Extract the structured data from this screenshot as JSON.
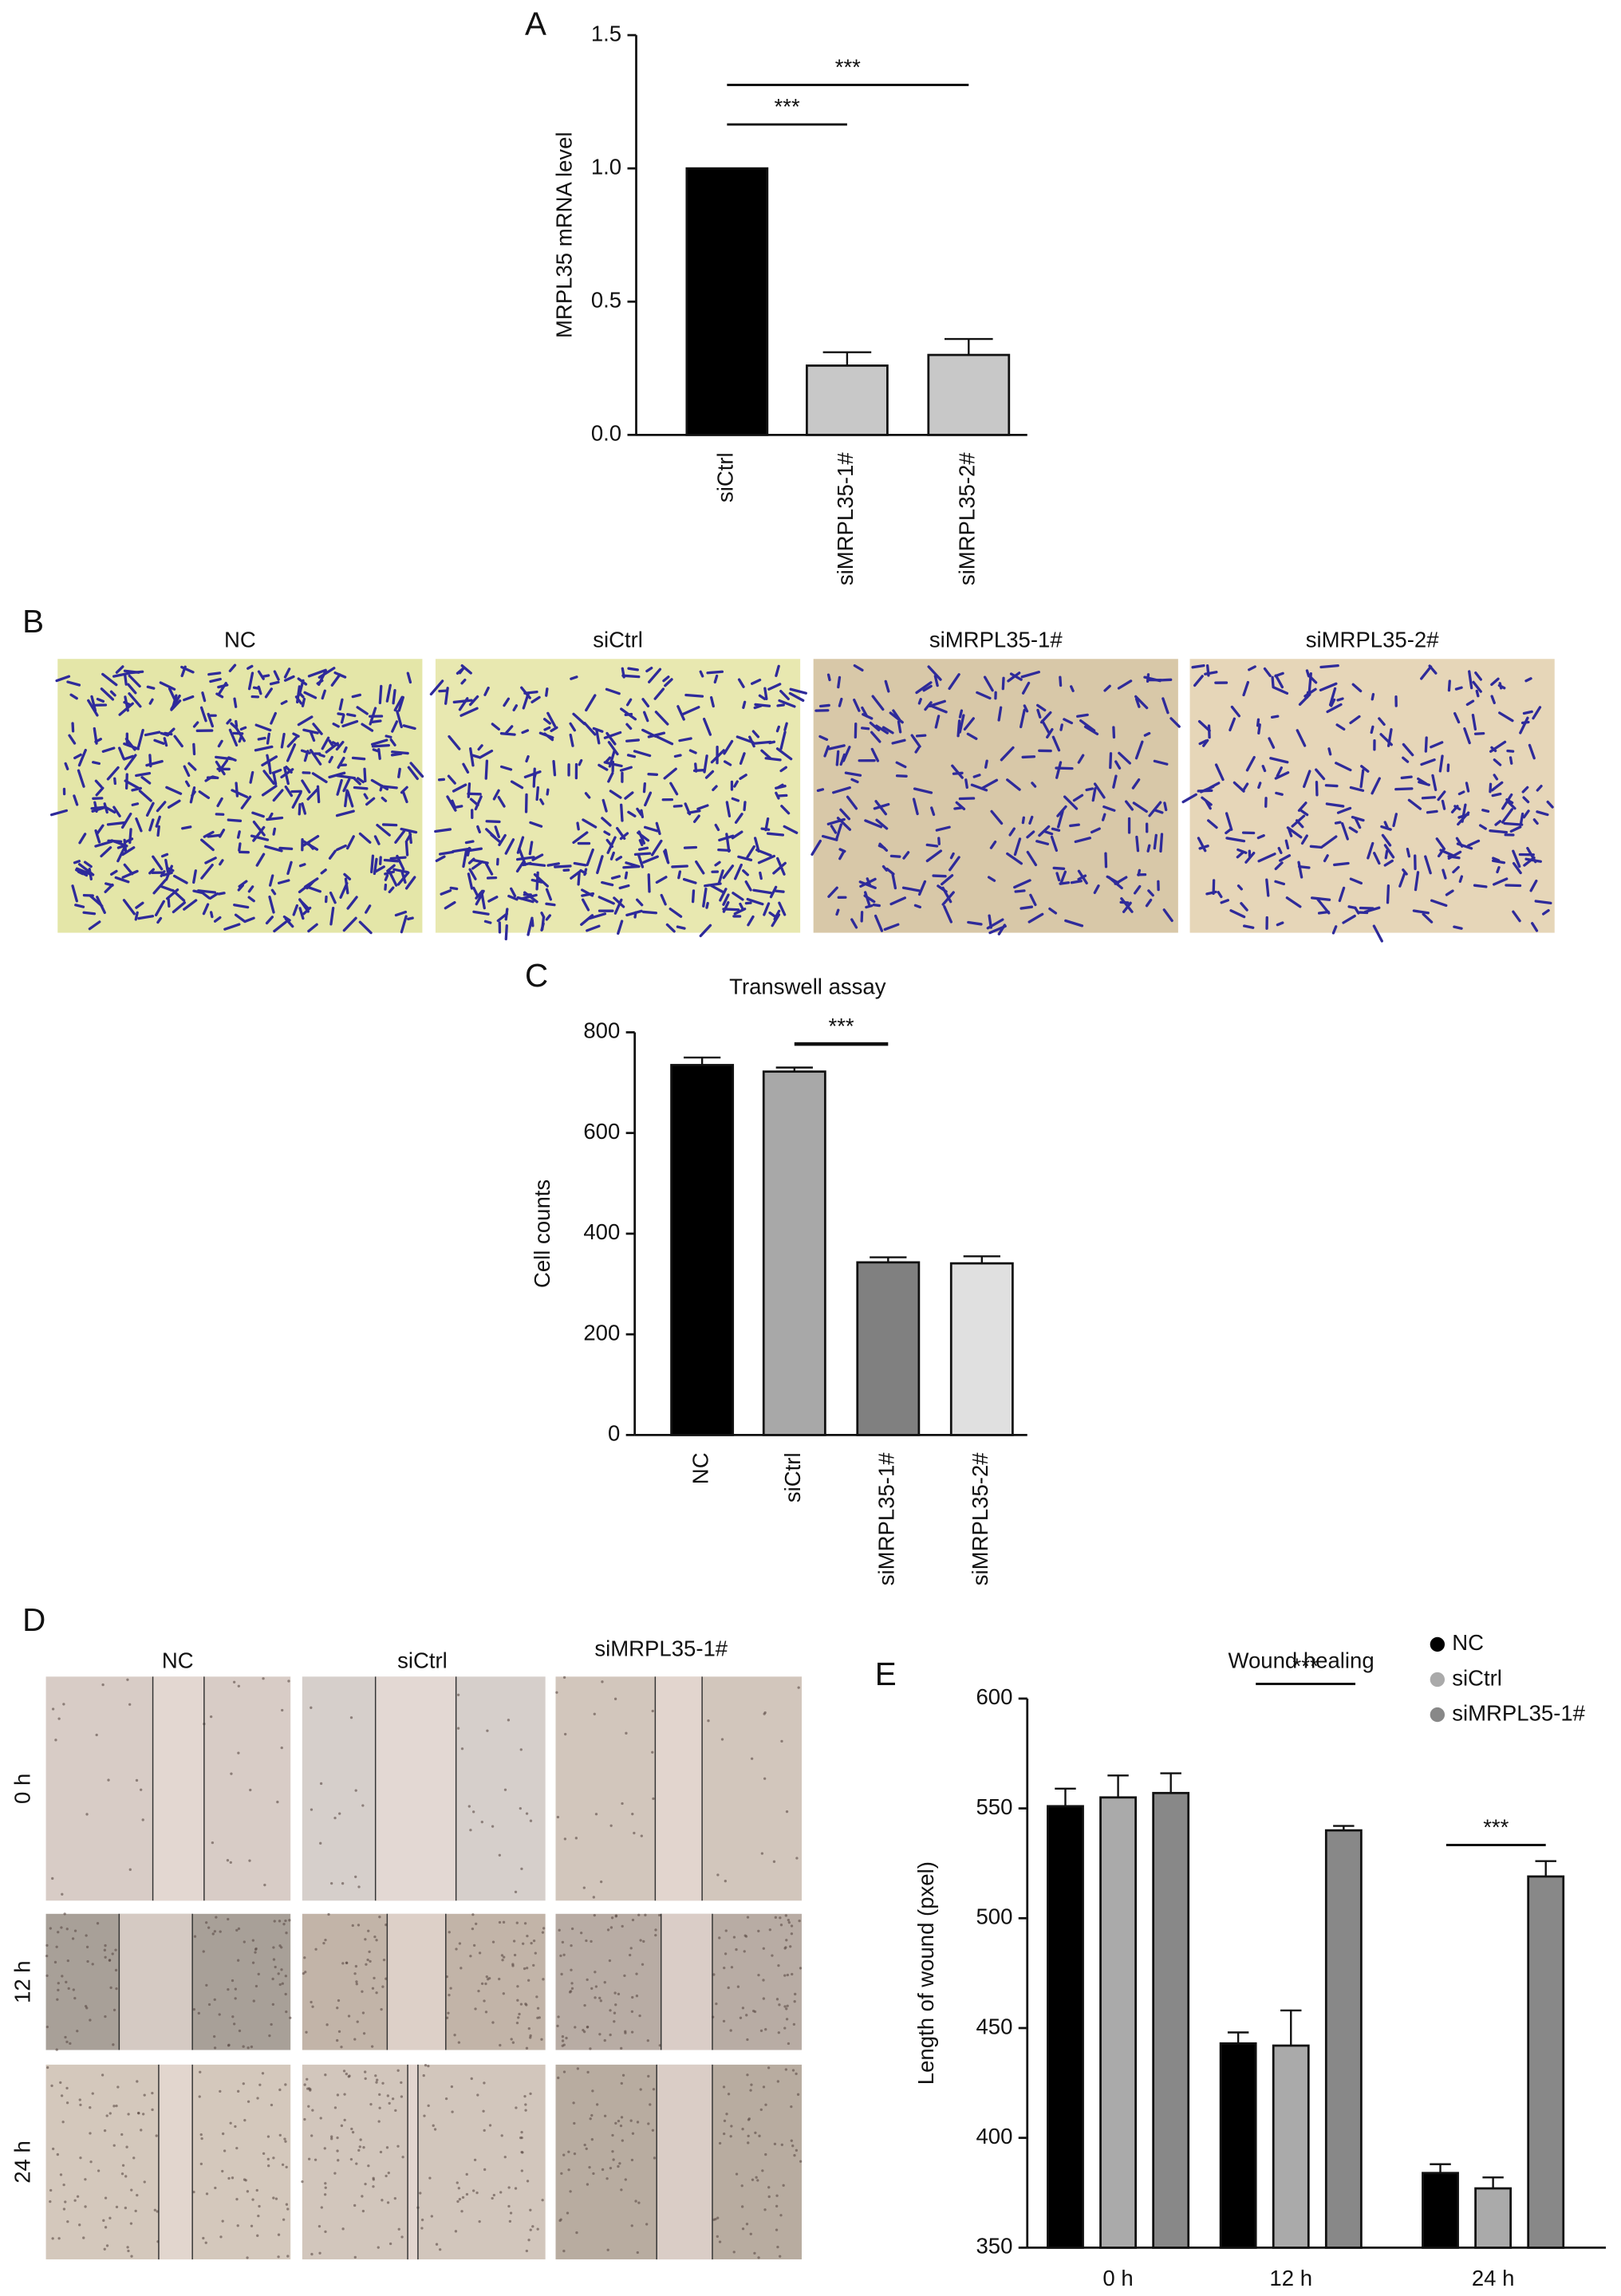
{
  "panel_labels": [
    "A",
    "B",
    "C",
    "D",
    "E"
  ],
  "invasion_images": {
    "titles": [
      "NC",
      "siCtrl",
      "siMRPL35-1#",
      "siMRPL35-2#"
    ]
  },
  "wound_images": {
    "columns": [
      "NC",
      "siCtrl",
      "siMRPL35-1#"
    ],
    "rows": [
      "0 h",
      "12 h",
      "24 h"
    ]
  },
  "chart_data": [
    {
      "type": "bar",
      "y_label": "MRPL35 mRNA level",
      "categories": [
        "siCtrl",
        "siMRPL35-1#",
        "siMRPL35-2#"
      ],
      "values": [
        1.0,
        0.26,
        0.3
      ],
      "errors": [
        0,
        0.05,
        0.06
      ],
      "colors": [
        "#000000",
        "#c8c8c8",
        "#c8c8c8"
      ],
      "ylim": [
        0,
        1.5
      ],
      "yticks": [
        {
          "value": 0,
          "label": "0.0"
        },
        {
          "value": 0.5,
          "label": "0.5"
        },
        {
          "value": 1,
          "label": "1.0"
        },
        {
          "value": 1.5,
          "label": "1.5"
        }
      ],
      "annotations": [
        "***",
        "***"
      ]
    },
    {
      "type": "bar",
      "title": "Transwell assay",
      "y_label": "Cell counts",
      "categories": [
        "NC",
        "siCtrl",
        "siMRPL35-1#",
        "siMRPL35-2#"
      ],
      "values": [
        735,
        722,
        343,
        341
      ],
      "errors": [
        15,
        8,
        10,
        14
      ],
      "colors": [
        "#000000",
        "#a8a8a8",
        "#808080",
        "#e0e0e0"
      ],
      "ylim": [
        0,
        800
      ],
      "yticks": [
        0,
        200,
        400,
        600,
        800
      ],
      "annotations": [
        "***"
      ]
    },
    {
      "type": "bar",
      "title": "Wound healing",
      "y_label": "Length of wound (pxel)",
      "categories": [
        "0 h",
        "12 h",
        "24 h"
      ],
      "series": [
        {
          "name": "NC",
          "color": "#000000",
          "values": [
            551,
            443,
            384
          ],
          "errors": [
            8,
            5,
            4
          ]
        },
        {
          "name": "siCtrl",
          "color": "#aaaaaa",
          "values": [
            555,
            442,
            377
          ],
          "errors": [
            10,
            16,
            5
          ]
        },
        {
          "name": "siMRPL35-1#",
          "color": "#888888",
          "values": [
            557,
            540,
            519
          ],
          "errors": [
            9,
            2,
            7
          ]
        }
      ],
      "ylim": [
        350,
        600
      ],
      "yticks": [
        350,
        400,
        450,
        500,
        550,
        600
      ],
      "annotations": [
        "***",
        "***"
      ]
    }
  ]
}
